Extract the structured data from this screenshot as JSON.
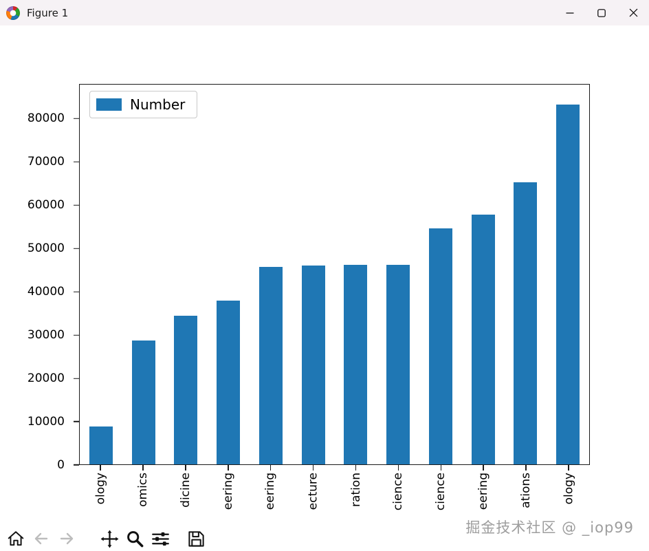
{
  "window": {
    "title": "Figure 1"
  },
  "chart_data": {
    "type": "bar",
    "title": "",
    "legend": {
      "label": "Number",
      "position": "upper left"
    },
    "bar_color": "#1f77b4",
    "grid": false,
    "x_tick_rotation": 90,
    "categories": [
      "ology",
      "omics",
      "dicine",
      "eering",
      "eering",
      "ecture",
      "ration",
      "cience",
      "cience",
      "eering",
      "ations",
      "ology"
    ],
    "values": [
      8700,
      28700,
      34400,
      38000,
      45700,
      46100,
      46300,
      46300,
      54700,
      57800,
      65300,
      83400
    ],
    "yticks": [
      0,
      10000,
      20000,
      30000,
      40000,
      50000,
      60000,
      70000,
      80000
    ],
    "ylim": [
      0,
      88000
    ],
    "ylabel": "",
    "xlabel": ""
  },
  "toolbar": {
    "icons": [
      "home-icon",
      "back-icon",
      "forward-icon",
      "pan-icon",
      "zoom-icon",
      "subplots-icon",
      "save-icon"
    ]
  },
  "watermark": "掘金技术社区 @ _iop99"
}
